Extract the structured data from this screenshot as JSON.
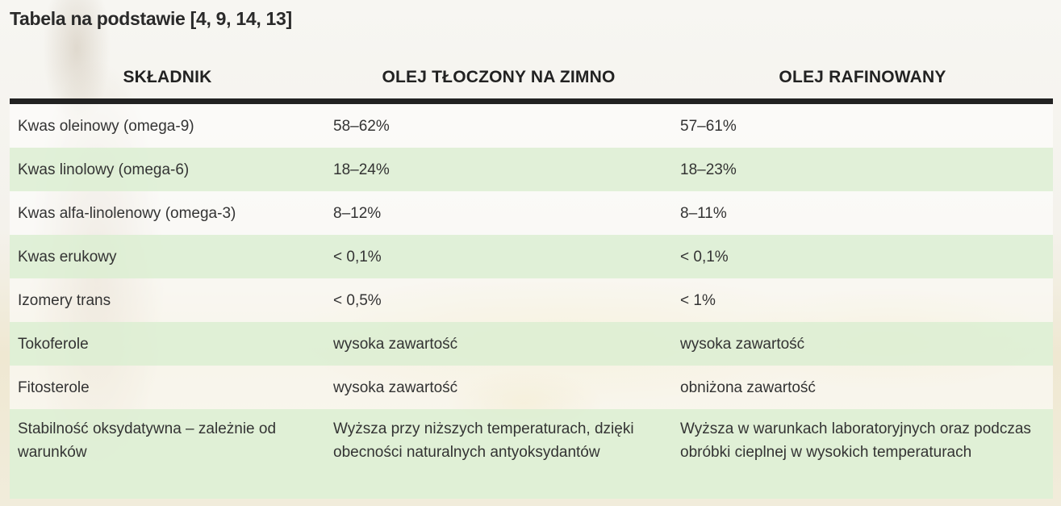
{
  "title": "Tabela na podstawie [4, 9, 14, 13]",
  "table": {
    "headers": [
      "SKŁADNIK",
      "OLEJ TŁOCZONY NA ZIMNO",
      "OLEJ RAFINOWANY"
    ],
    "rows": [
      [
        "Kwas oleinowy (omega-9)",
        "58–62%",
        "57–61%"
      ],
      [
        "Kwas linolowy (omega-6)",
        "18–24%",
        "18–23%"
      ],
      [
        "Kwas alfa-linolenowy (omega-3)",
        "8–12%",
        "8–11%"
      ],
      [
        "Kwas erukowy",
        "< 0,1%",
        "< 0,1%"
      ],
      [
        "Izomery trans",
        "< 0,5%",
        "< 1%"
      ],
      [
        "Tokoferole",
        "wysoka zawartość",
        "wysoka zawartość"
      ],
      [
        "Fitosterole",
        "wysoka zawartość",
        "obniżona zawartość"
      ],
      [
        "Stabilność oksydatywna – zależnie od warunków",
        "Wyższa przy niższych temperaturach, dzięki obecności naturalnych antyoksydantów",
        "Wyższa w warunkach laboratoryjnych oraz podczas obróbki cieplnej w wysokich temperaturach"
      ]
    ]
  },
  "colors": {
    "stripe_green": "#def0d6",
    "header_rule": "#222222"
  }
}
